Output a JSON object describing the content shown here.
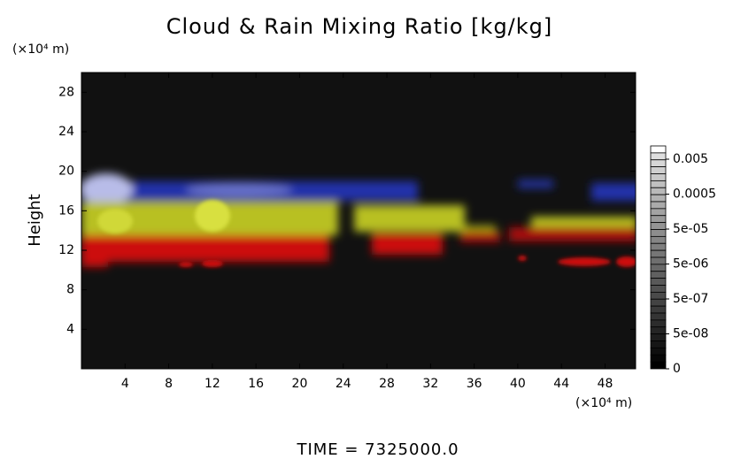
{
  "chart_data": {
    "type": "heatmap",
    "title": "Cloud & Rain Mixing Ratio [kg/kg]",
    "y_unit": "(×10⁴ m)",
    "ylabel": "Height",
    "x_unit": "(×10⁴ m)",
    "xlim": [
      0,
      50.8
    ],
    "xticks": [
      4,
      8,
      12,
      16,
      20,
      24,
      28,
      32,
      36,
      40,
      44,
      48
    ],
    "ylim": [
      0,
      30
    ],
    "yticks": [
      4,
      8,
      12,
      16,
      20,
      24,
      28
    ],
    "colorbar": {
      "ticks": [
        0.005,
        0.0005,
        {
          "value": 5e-05,
          "label": "5e-05"
        },
        {
          "value": 5e-06,
          "label": "5e-06"
        },
        {
          "value": 5e-07,
          "label": "5e-07"
        },
        {
          "value": 5e-08,
          "label": "5e-08"
        },
        0
      ]
    },
    "footer": "TIME = 7325000.0"
  }
}
